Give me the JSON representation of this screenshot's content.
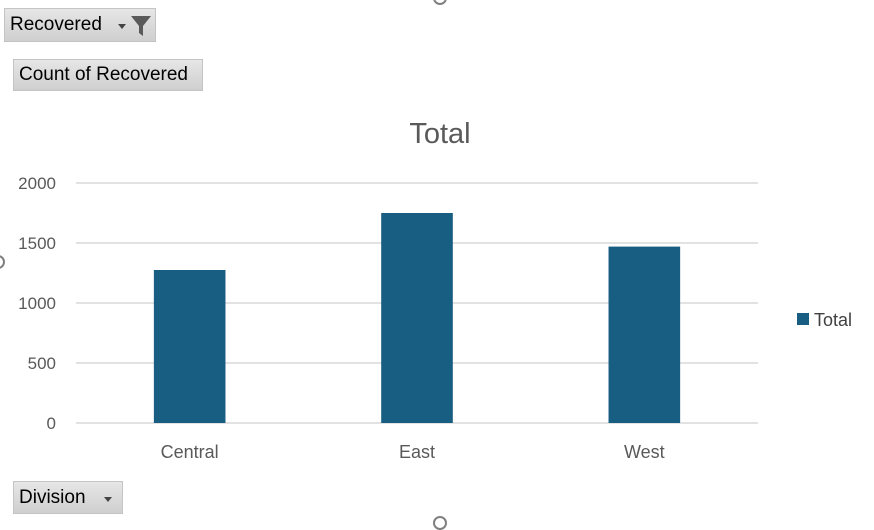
{
  "pivot": {
    "filter_field": "Recovered",
    "value_field": "Count of Recovered",
    "axis_field": "Division"
  },
  "icons": {
    "filter": "funnel-filter-icon",
    "dropdown": "dropdown-arrow-icon"
  },
  "chart_data": {
    "type": "bar",
    "title": "Total",
    "categories": [
      "Central",
      "East",
      "West"
    ],
    "series": [
      {
        "name": "Total",
        "values": [
          1275,
          1750,
          1470
        ],
        "color": "#175e82"
      }
    ],
    "ylim": [
      0,
      2000
    ],
    "yticks": [
      0,
      500,
      1000,
      1500,
      2000
    ],
    "grid": true,
    "legend_position": "right"
  }
}
